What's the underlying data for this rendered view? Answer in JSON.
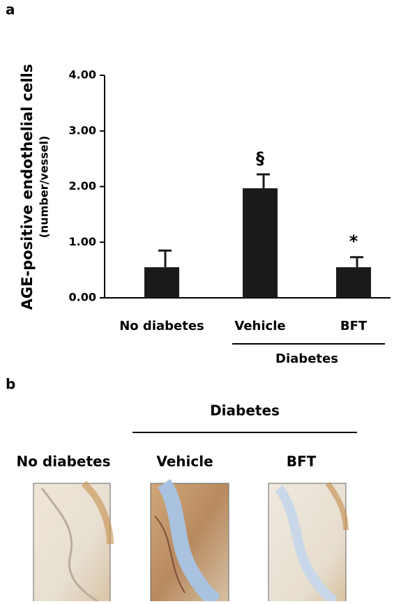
{
  "panel_labels": [
    "a",
    "b"
  ],
  "chart_data": {
    "type": "bar",
    "ylabel": "AGE-positive endothelial cells",
    "ylabel_unit": "(number/vessel)",
    "categories": [
      "No diabetes",
      "Vehicle",
      "BFT"
    ],
    "values": [
      0.55,
      1.97,
      0.55
    ],
    "errors": [
      0.3,
      0.25,
      0.18
    ],
    "annotations": [
      null,
      "§",
      "*"
    ],
    "group_label": "Diabetes",
    "group": [
      1,
      2
    ],
    "color": "#1a1a1a",
    "ylim": [
      0,
      4
    ],
    "yticks": [
      {
        "value": 0,
        "label": "0.00"
      },
      {
        "value": 1,
        "label": "1.00"
      },
      {
        "value": 2,
        "label": "2.00"
      },
      {
        "value": 3,
        "label": "3.00"
      },
      {
        "value": 4,
        "label": "4.00"
      }
    ]
  },
  "images": {
    "group_label": "Diabetes",
    "labels": [
      "No diabetes",
      "Vehicle",
      "BFT"
    ]
  }
}
